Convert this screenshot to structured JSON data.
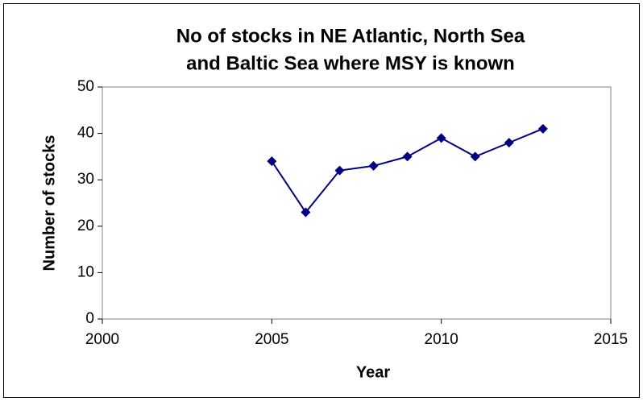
{
  "chart_data": {
    "type": "line",
    "title": [
      "No of stocks in NE Atlantic, North Sea",
      "and Baltic Sea where MSY is known"
    ],
    "x_label": "Year",
    "y_label": "Number of stocks",
    "x": [
      2005,
      2006,
      2007,
      2008,
      2009,
      2010,
      2011,
      2012,
      2013
    ],
    "values": [
      34,
      23,
      32,
      33,
      35,
      39,
      35,
      38,
      41
    ],
    "color": "#000080",
    "xlim": [
      2000,
      2015
    ],
    "xticks": [
      2000,
      2005,
      2010,
      2015
    ],
    "ylim": [
      0,
      50
    ],
    "yticks": [
      0,
      10,
      20,
      30,
      40,
      50
    ],
    "grid": false
  }
}
